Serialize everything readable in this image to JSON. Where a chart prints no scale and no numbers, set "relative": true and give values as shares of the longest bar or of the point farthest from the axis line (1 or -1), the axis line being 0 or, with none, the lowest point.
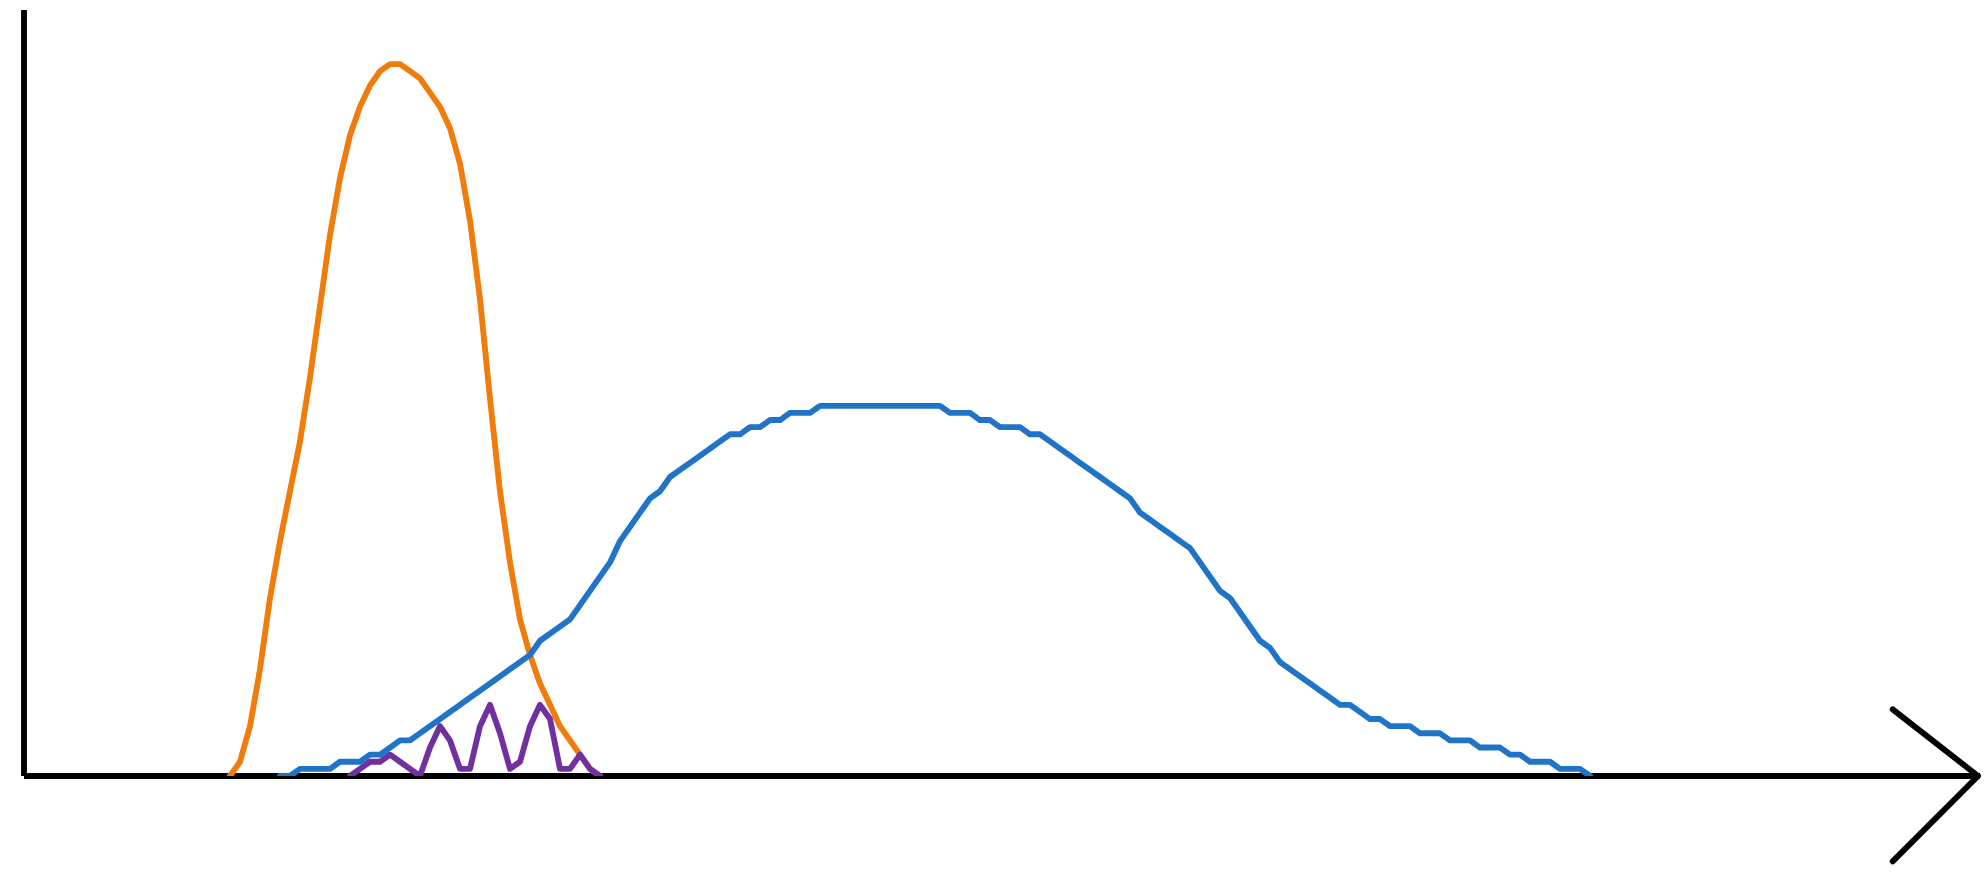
{
  "chart_data": {
    "type": "line",
    "relative": true,
    "categories": [
      null,
      null,
      null,
      null,
      null,
      null,
      null,
      null,
      null,
      null,
      null,
      null,
      null,
      null,
      null,
      null,
      null,
      null,
      null,
      null,
      null,
      null,
      null,
      null,
      null,
      null,
      null,
      null,
      null,
      null,
      null,
      null,
      null,
      null,
      null,
      null,
      null,
      null,
      null,
      null,
      null,
      null,
      null,
      null,
      null,
      null,
      null,
      null,
      null,
      null,
      null,
      null,
      null,
      null,
      null,
      null,
      null,
      null,
      null,
      null,
      null,
      null,
      null,
      null,
      null,
      null,
      null,
      null,
      null,
      null,
      null,
      null,
      null,
      null,
      null,
      null,
      null,
      null,
      null,
      null,
      null,
      null,
      null,
      null,
      null,
      null,
      null,
      null,
      null,
      null,
      null,
      null,
      null,
      null,
      null,
      null,
      null,
      null,
      null,
      null,
      null,
      null,
      null,
      null,
      null,
      null,
      null,
      null,
      null,
      null,
      null,
      null,
      null,
      null,
      null,
      null,
      null,
      null,
      null,
      null,
      null,
      null,
      null,
      null,
      null,
      null,
      null,
      null,
      null,
      null,
      null,
      null,
      null,
      null,
      null,
      null,
      null,
      null,
      null
    ],
    "series": [
      {
        "color": "#f07c0c",
        "values": [
          null,
          0.0,
          0.02,
          0.07,
          0.15,
          0.25,
          0.33,
          0.4,
          0.47,
          0.56,
          0.66,
          0.76,
          0.84,
          0.9,
          0.94,
          0.97,
          0.99,
          1.0,
          1.0,
          0.99,
          0.98,
          0.96,
          0.94,
          0.91,
          0.86,
          0.78,
          0.67,
          0.53,
          0.4,
          0.3,
          0.22,
          0.17,
          0.13,
          0.1,
          0.07,
          0.05,
          0.03,
          0.01,
          0.0,
          null,
          null,
          null,
          null,
          null,
          null,
          null,
          null,
          null,
          null,
          null,
          null,
          null,
          null,
          null,
          null,
          null,
          null,
          null,
          null,
          null,
          null,
          null,
          null,
          null,
          null,
          null,
          null,
          null,
          null,
          null,
          null,
          null,
          null,
          null,
          null,
          null,
          null,
          null,
          null,
          null,
          null,
          null,
          null,
          null,
          null,
          null,
          null,
          null,
          null,
          null,
          null,
          null,
          null,
          null,
          null,
          null,
          null,
          null,
          null,
          null,
          null,
          null,
          null,
          null,
          null,
          null,
          null,
          null,
          null,
          null,
          null,
          null,
          null,
          null,
          null,
          null,
          null,
          null,
          null,
          null,
          null,
          null,
          null,
          null,
          null,
          null,
          null,
          null,
          null,
          null,
          null,
          null,
          null,
          null,
          null,
          null,
          null,
          null,
          null
        ]
      },
      {
        "color": "#1f74c8",
        "values": [
          null,
          null,
          null,
          null,
          null,
          null,
          0.0,
          0.0,
          0.01,
          0.01,
          0.01,
          0.01,
          0.02,
          0.02,
          0.02,
          0.03,
          0.03,
          0.04,
          0.05,
          0.05,
          0.06,
          0.07,
          0.08,
          0.09,
          0.1,
          0.11,
          0.12,
          0.13,
          0.14,
          0.15,
          0.16,
          0.17,
          0.19,
          0.2,
          0.21,
          0.22,
          0.24,
          0.26,
          0.28,
          0.3,
          0.33,
          0.35,
          0.37,
          0.39,
          0.4,
          0.42,
          0.43,
          0.44,
          0.45,
          0.46,
          0.47,
          0.48,
          0.48,
          0.49,
          0.49,
          0.5,
          0.5,
          0.51,
          0.51,
          0.51,
          0.52,
          0.52,
          0.52,
          0.52,
          0.52,
          0.52,
          0.52,
          0.52,
          0.52,
          0.52,
          0.52,
          0.52,
          0.52,
          0.51,
          0.51,
          0.51,
          0.5,
          0.5,
          0.49,
          0.49,
          0.49,
          0.48,
          0.48,
          0.47,
          0.46,
          0.45,
          0.44,
          0.43,
          0.42,
          0.41,
          0.4,
          0.39,
          0.37,
          0.36,
          0.35,
          0.34,
          0.33,
          0.32,
          0.3,
          0.28,
          0.26,
          0.25,
          0.23,
          0.21,
          0.19,
          0.18,
          0.16,
          0.15,
          0.14,
          0.13,
          0.12,
          0.11,
          0.1,
          0.1,
          0.09,
          0.08,
          0.08,
          0.07,
          0.07,
          0.07,
          0.06,
          0.06,
          0.06,
          0.05,
          0.05,
          0.05,
          0.04,
          0.04,
          0.04,
          0.03,
          0.03,
          0.02,
          0.02,
          0.02,
          0.01,
          0.01,
          0.01,
          0.0,
          null
        ]
      },
      {
        "color": "#7030a0",
        "values": [
          null,
          null,
          null,
          null,
          null,
          null,
          null,
          null,
          null,
          null,
          null,
          null,
          null,
          0.0,
          0.01,
          0.02,
          0.02,
          0.03,
          0.02,
          0.01,
          0.0,
          0.04,
          0.07,
          0.05,
          0.01,
          0.01,
          0.07,
          0.1,
          0.06,
          0.01,
          0.02,
          0.07,
          0.1,
          0.08,
          0.01,
          0.01,
          0.03,
          0.01,
          0.0,
          null,
          null,
          null,
          null,
          null,
          null,
          null,
          null,
          null,
          null,
          null,
          null,
          null,
          null,
          null,
          null,
          null,
          null,
          null,
          null,
          null,
          null,
          null,
          null,
          null,
          null,
          null,
          null,
          null,
          null,
          null,
          null,
          null,
          null,
          null,
          null,
          null,
          null,
          null,
          null,
          null,
          null,
          null,
          null,
          null,
          null,
          null,
          null,
          null,
          null,
          null,
          null,
          null,
          null,
          null,
          null,
          null,
          null,
          null,
          null,
          null,
          null,
          null,
          null,
          null,
          null,
          null,
          null,
          null,
          null,
          null,
          null,
          null,
          null,
          null,
          null,
          null,
          null,
          null,
          null,
          null,
          null,
          null,
          null,
          null,
          null,
          null,
          null,
          null,
          null,
          null,
          null,
          null,
          null,
          null,
          null,
          null,
          null,
          null,
          null
        ]
      }
    ],
    "marker": "none"
  }
}
